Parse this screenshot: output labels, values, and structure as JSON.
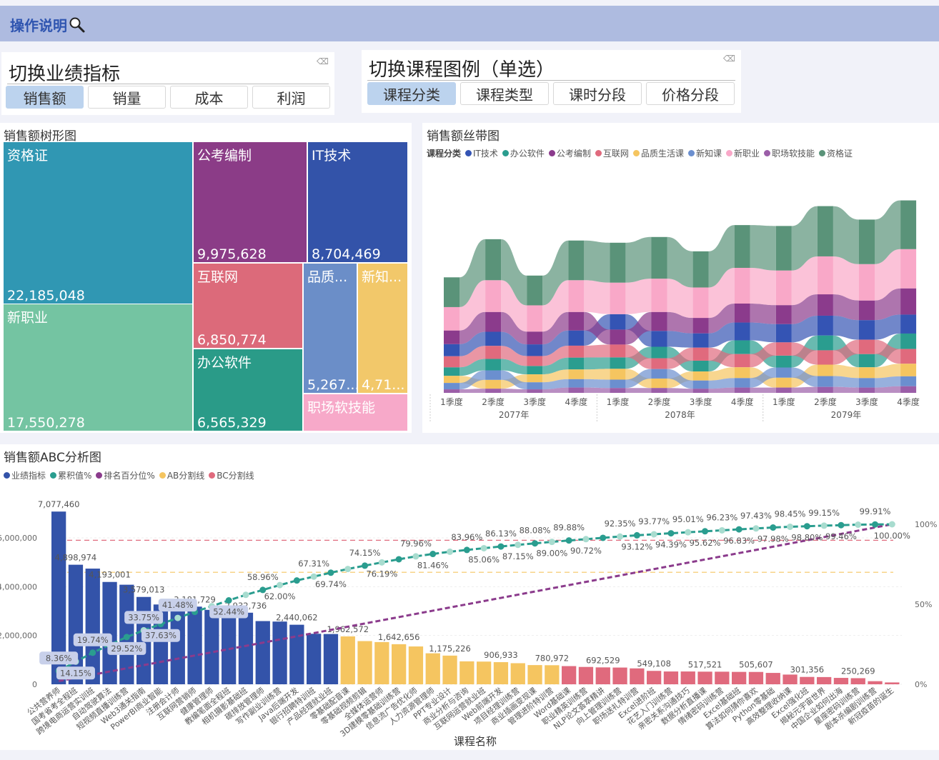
{
  "header": {
    "help_label": "操作说明",
    "help_icon": "magnifier-icon",
    "bg_color": "#aebbe0"
  },
  "metric_slicer": {
    "title": "切换业绩指标",
    "options": [
      "销售额",
      "销量",
      "成本",
      "利润"
    ],
    "selected": "销售额"
  },
  "legend_slicer": {
    "title": "切换课程图例（单选）",
    "options": [
      "课程分类",
      "课程类型",
      "课时分段",
      "价格分段"
    ],
    "selected": "课程分类"
  },
  "treemap": {
    "title": "销售额树形图",
    "tiles": [
      {
        "name": "资格证",
        "value_label": "22,185,048",
        "value": 22185048,
        "color": "#3097b3"
      },
      {
        "name": "新职业",
        "value_label": "17,550,278",
        "value": 17550278,
        "color": "#74c4a2"
      },
      {
        "name": "公考编制",
        "value_label": "9,975,628",
        "value": 9975628,
        "color": "#8b3c87"
      },
      {
        "name": "IT技术",
        "value_label": "8,704,469",
        "value": 8704469,
        "color": "#3353a9"
      },
      {
        "name": "互联网",
        "value_label": "6,850,774",
        "value": 6850774,
        "color": "#dc6a7a"
      },
      {
        "name": "办公软件",
        "value_label": "6,565,329",
        "value": 6565329,
        "color": "#2a9b88"
      },
      {
        "name": "品质...",
        "value_label": "5,267...",
        "color": "#6b8ec8"
      },
      {
        "name": "新知...",
        "value_label": "4,71...",
        "color": "#f2c86a"
      },
      {
        "name": "职场软技能",
        "value_label": "",
        "color": "#f7a9c9"
      }
    ]
  },
  "chart_data": [
    {
      "type": "ribbon",
      "title": "销售额丝带图",
      "legend_title": "课程分类",
      "legend_position": "top-left",
      "quarters": [
        "1季度",
        "2季度",
        "3季度",
        "4季度",
        "1季度",
        "2季度",
        "3季度",
        "4季度",
        "1季度",
        "2季度",
        "3季度",
        "4季度"
      ],
      "years": [
        "2077年",
        "2078年",
        "2079年"
      ],
      "series": [
        {
          "name": "IT技术",
          "color": "#3454b4",
          "values": [
            550000,
            640000,
            530000,
            690000,
            700000,
            720000,
            650000,
            810000,
            830000,
            900000,
            890000,
            860000
          ]
        },
        {
          "name": "办公软件",
          "color": "#2a9d8f",
          "values": [
            390000,
            520000,
            380000,
            540000,
            520000,
            520000,
            490000,
            620000,
            540000,
            670000,
            600000,
            700000
          ]
        },
        {
          "name": "公考编制",
          "color": "#8b3b8c",
          "values": [
            620000,
            900000,
            580000,
            840000,
            680000,
            860000,
            700000,
            860000,
            860000,
            970000,
            890000,
            1190000
          ]
        },
        {
          "name": "互联网",
          "color": "#e06a7d",
          "values": [
            500000,
            590000,
            450000,
            540000,
            580000,
            490000,
            590000,
            600000,
            600000,
            650000,
            650000,
            670000
          ]
        },
        {
          "name": "品质生活课",
          "color": "#f5c560",
          "values": [
            320000,
            400000,
            360000,
            440000,
            490000,
            430000,
            410000,
            490000,
            450000,
            520000,
            490000,
            570000
          ]
        },
        {
          "name": "新知课",
          "color": "#6b8fcf",
          "values": [
            290000,
            430000,
            320000,
            380000,
            380000,
            430000,
            370000,
            430000,
            460000,
            490000,
            430000,
            450000
          ]
        },
        {
          "name": "新职业",
          "color": "#f9a8c8",
          "values": [
            1060000,
            1440000,
            1190000,
            1440000,
            1430000,
            1510000,
            1380000,
            1620000,
            1570000,
            1720000,
            1650000,
            1780000
          ]
        },
        {
          "name": "职场软技能",
          "color": "#9b5ea8",
          "values": [
            160000,
            190000,
            160000,
            240000,
            220000,
            220000,
            190000,
            240000,
            240000,
            270000,
            240000,
            300000
          ]
        },
        {
          "name": "资格证",
          "color": "#5a9379",
          "values": [
            1350000,
            1860000,
            1350000,
            1800000,
            1810000,
            1890000,
            1640000,
            1940000,
            2020000,
            2280000,
            2020000,
            2210000
          ]
        }
      ]
    },
    {
      "type": "bar+line",
      "title": "销售额ABC分析图",
      "xlabel": "课程名称",
      "legend_position": "top-left",
      "legend": [
        {
          "name": "业绩指标",
          "color": "#3353a9"
        },
        {
          "name": "累积值%",
          "color": "#2a9d8f"
        },
        {
          "name": "排名百分位%",
          "color": "#8b3b8c"
        },
        {
          "name": "AB分割线",
          "color": "#f5c560"
        },
        {
          "name": "BC分割线",
          "color": "#e06a7d"
        }
      ],
      "class_colors": {
        "A": "#3353a9",
        "B": "#f5c560",
        "C": "#e06a7d"
      },
      "y_left": {
        "ticks": [
          "0",
          "2,000,000",
          "4,000,000",
          "6,000,000"
        ],
        "tick_values": [
          0,
          2000000,
          4000000,
          6000000
        ],
        "range": [
          0,
          6550000
        ]
      },
      "y_right": {
        "ticks": [
          "0%",
          "50%",
          "100%"
        ],
        "tick_values": [
          0,
          50,
          100
        ],
        "range": [
          0,
          100
        ]
      },
      "ab_cut_pct": 70,
      "bc_cut_pct": 90,
      "bars": [
        {
          "name": "公共营养师",
          "value": 7077460,
          "value_label": "7,077,460",
          "cum_pct": 8.36,
          "cum_label": "8.36%",
          "class": "A"
        },
        {
          "name": "国考省考全程班",
          "value": 4898974,
          "value_label": "4,898,974",
          "cum_pct": 14.15,
          "cum_label": "14.15%",
          "class": "A"
        },
        {
          "name": "跨境电商运营实训班",
          "value": 4740000,
          "value_label": "",
          "cum_pct": 19.74,
          "cum_label": "19.74%",
          "class": "A"
        },
        {
          "name": "自动驾驶算法",
          "value": 4193001,
          "value_label": "4,193,001",
          "cum_pct": 24.7,
          "cum_label": "",
          "class": "A"
        },
        {
          "name": "短视频直播训练营",
          "value": 4080000,
          "value_label": "",
          "cum_pct": 29.52,
          "cum_label": "29.52%",
          "class": "A"
        },
        {
          "name": "Web3通关指南",
          "value": 3579013,
          "value_label": "3,579,013",
          "cum_pct": 33.75,
          "cum_label": "33.75%",
          "class": "A"
        },
        {
          "name": "PowerBI商业智能",
          "value": 3270000,
          "value_label": "",
          "cum_pct": 37.63,
          "cum_label": "37.63%",
          "class": "A"
        },
        {
          "name": "注册会计师",
          "value": 3260000,
          "value_label": "",
          "cum_pct": 41.48,
          "cum_label": "41.48%",
          "class": "A"
        },
        {
          "name": "互联网营销师",
          "value": 3181729,
          "value_label": "3,181,729",
          "cum_pct": 45.24,
          "cum_label": "",
          "class": "A"
        },
        {
          "name": "健康管理师",
          "value": 3050000,
          "value_label": "",
          "cum_pct": 48.84,
          "cum_label": "",
          "class": "A"
        },
        {
          "name": "教编笔面全程班",
          "value": 3050000,
          "value_label": "",
          "cum_pct": 52.44,
          "cum_label": "52.44%",
          "class": "A"
        },
        {
          "name": "相机摄影基础班",
          "value": 2932736,
          "value_label": "2,932,736",
          "cum_pct": 55.9,
          "cum_label": "",
          "class": "A"
        },
        {
          "name": "碳排放管理师",
          "value": 2590000,
          "value_label": "",
          "cum_pct": 58.96,
          "cum_label": "58.96%",
          "class": "A"
        },
        {
          "name": "写作副业训练营",
          "value": 2570000,
          "value_label": "",
          "cum_pct": 62.0,
          "cum_label": "62.00%",
          "class": "A"
        },
        {
          "name": "Java后端开发",
          "value": 2440062,
          "value_label": "2,440,062",
          "cum_pct": 64.88,
          "cum_label": "",
          "class": "A"
        },
        {
          "name": "银行招聘特训班",
          "value": 2070000,
          "value_label": "",
          "cum_pct": 67.31,
          "cum_label": "67.31%",
          "class": "A"
        },
        {
          "name": "产品经理就业班",
          "value": 2060000,
          "value_label": "",
          "cum_pct": 69.74,
          "cum_label": "69.74%",
          "class": "A"
        },
        {
          "name": "零基础配音课",
          "value": 1962572,
          "value_label": "1,962,572",
          "cum_pct": 72.06,
          "cum_label": "",
          "class": "B"
        },
        {
          "name": "零基础视频剪辑",
          "value": 1770000,
          "value_label": "",
          "cum_pct": 74.15,
          "cum_label": "74.15%",
          "class": "B"
        },
        {
          "name": "全媒体运营师",
          "value": 1730000,
          "value_label": "",
          "cum_pct": 76.19,
          "cum_label": "76.19%",
          "class": "B"
        },
        {
          "name": "3D建模零基础训练营",
          "value": 1642656,
          "value_label": "1,642,656",
          "cum_pct": 78.13,
          "cum_label": "",
          "class": "B"
        },
        {
          "name": "信息流广告优化师",
          "value": 1550000,
          "value_label": "",
          "cum_pct": 79.96,
          "cum_label": "79.96%",
          "class": "B"
        },
        {
          "name": "人力资源管理师",
          "value": 1270000,
          "value_label": "",
          "cum_pct": 81.46,
          "cum_label": "81.46%",
          "class": "B"
        },
        {
          "name": "PPT专业设计",
          "value": 1175226,
          "value_label": "1,175,226",
          "cum_pct": 82.85,
          "cum_label": "",
          "class": "B"
        },
        {
          "name": "商业分析与咨询",
          "value": 940000,
          "value_label": "",
          "cum_pct": 83.96,
          "cum_label": "83.96%",
          "class": "B"
        },
        {
          "name": "互联网运营就业班",
          "value": 930000,
          "value_label": "",
          "cum_pct": 85.06,
          "cum_label": "85.06%",
          "class": "B"
        },
        {
          "name": "Web前端开发",
          "value": 906933,
          "value_label": "906,933",
          "cum_pct": 86.13,
          "cum_label": "86.13%",
          "class": "B"
        },
        {
          "name": "项目经理训练营",
          "value": 864000,
          "value_label": "",
          "cum_pct": 87.15,
          "cum_label": "87.15%",
          "class": "B"
        },
        {
          "name": "商业插画变现课",
          "value": 787000,
          "value_label": "",
          "cum_pct": 88.08,
          "cum_label": "88.08%",
          "class": "B"
        },
        {
          "name": "管理进阶特训营",
          "value": 780972,
          "value_label": "780,972",
          "cum_pct": 89.0,
          "cum_label": "89.00%",
          "class": "B"
        },
        {
          "name": "Word基础课",
          "value": 745000,
          "value_label": "",
          "cum_pct": 89.88,
          "cum_label": "89.88%",
          "class": "C"
        },
        {
          "name": "职业精英训练营",
          "value": 711000,
          "value_label": "",
          "cum_pct": 90.72,
          "cum_label": "90.72%",
          "class": "C"
        },
        {
          "name": "NLP论文荟萃精讲",
          "value": 692529,
          "value_label": "692,529",
          "cum_pct": 91.54,
          "cum_label": "",
          "class": "C"
        },
        {
          "name": "向上管理训练营",
          "value": 686000,
          "value_label": "",
          "cum_pct": 92.35,
          "cum_label": "92.35%",
          "class": "C"
        },
        {
          "name": "职场送礼特训营",
          "value": 652000,
          "value_label": "",
          "cum_pct": 93.12,
          "cum_label": "93.12%",
          "class": "C"
        },
        {
          "name": "Excel进阶班",
          "value": 549108,
          "value_label": "549,108",
          "cum_pct": 93.77,
          "cum_label": "93.77%",
          "class": "C"
        },
        {
          "name": "花艺入门训练营",
          "value": 525000,
          "value_label": "",
          "cum_pct": 94.39,
          "cum_label": "94.39%",
          "class": "C"
        },
        {
          "name": "亲密关系沟通技巧",
          "value": 525000,
          "value_label": "",
          "cum_pct": 95.01,
          "cum_label": "95.01%",
          "class": "C"
        },
        {
          "name": "数据分析直播课",
          "value": 517521,
          "value_label": "517,521",
          "cum_pct": 95.62,
          "cum_label": "95.62%",
          "class": "C"
        },
        {
          "name": "情绪密码训练营",
          "value": 516000,
          "value_label": "",
          "cum_pct": 96.23,
          "cum_label": "96.23%",
          "class": "C"
        },
        {
          "name": "Excel基础班",
          "value": 508000,
          "value_label": "",
          "cum_pct": 96.83,
          "cum_label": "96.83%",
          "class": "C"
        },
        {
          "name": "算法如何猜你喜欢",
          "value": 505607,
          "value_label": "505,607",
          "cum_pct": 97.43,
          "cum_label": "97.43%",
          "class": "C"
        },
        {
          "name": "Python零基础",
          "value": 466000,
          "value_label": "",
          "cum_pct": 97.98,
          "cum_label": "97.98%",
          "class": "C"
        },
        {
          "name": "高效整理收纳课",
          "value": 398000,
          "value_label": "",
          "cum_pct": 98.45,
          "cum_label": "98.45%",
          "class": "C"
        },
        {
          "name": "Excel强化班",
          "value": 301356,
          "value_label": "301,356",
          "cum_pct": 98.8,
          "cum_label": "98.80%",
          "class": "C"
        },
        {
          "name": "揭秘元宇宙世界",
          "value": 296000,
          "value_label": "",
          "cum_pct": 99.15,
          "cum_label": "99.15%",
          "class": "C"
        },
        {
          "name": "中国企业如何出海",
          "value": 262000,
          "value_label": "",
          "cum_pct": 99.46,
          "cum_label": "99.46%",
          "class": "C"
        },
        {
          "name": "星座密码训练营",
          "value": 250269,
          "value_label": "250,269",
          "cum_pct": 99.76,
          "cum_label": "",
          "class": "C"
        },
        {
          "name": "剧本杀编剧训练营",
          "value": 127000,
          "value_label": "",
          "cum_pct": 99.91,
          "cum_label": "99.91%",
          "class": "C"
        },
        {
          "name": "新冠疫苗的诞生",
          "value": 76000,
          "value_label": "",
          "cum_pct": 100.0,
          "cum_label": "100.00%",
          "class": "C"
        }
      ]
    }
  ]
}
